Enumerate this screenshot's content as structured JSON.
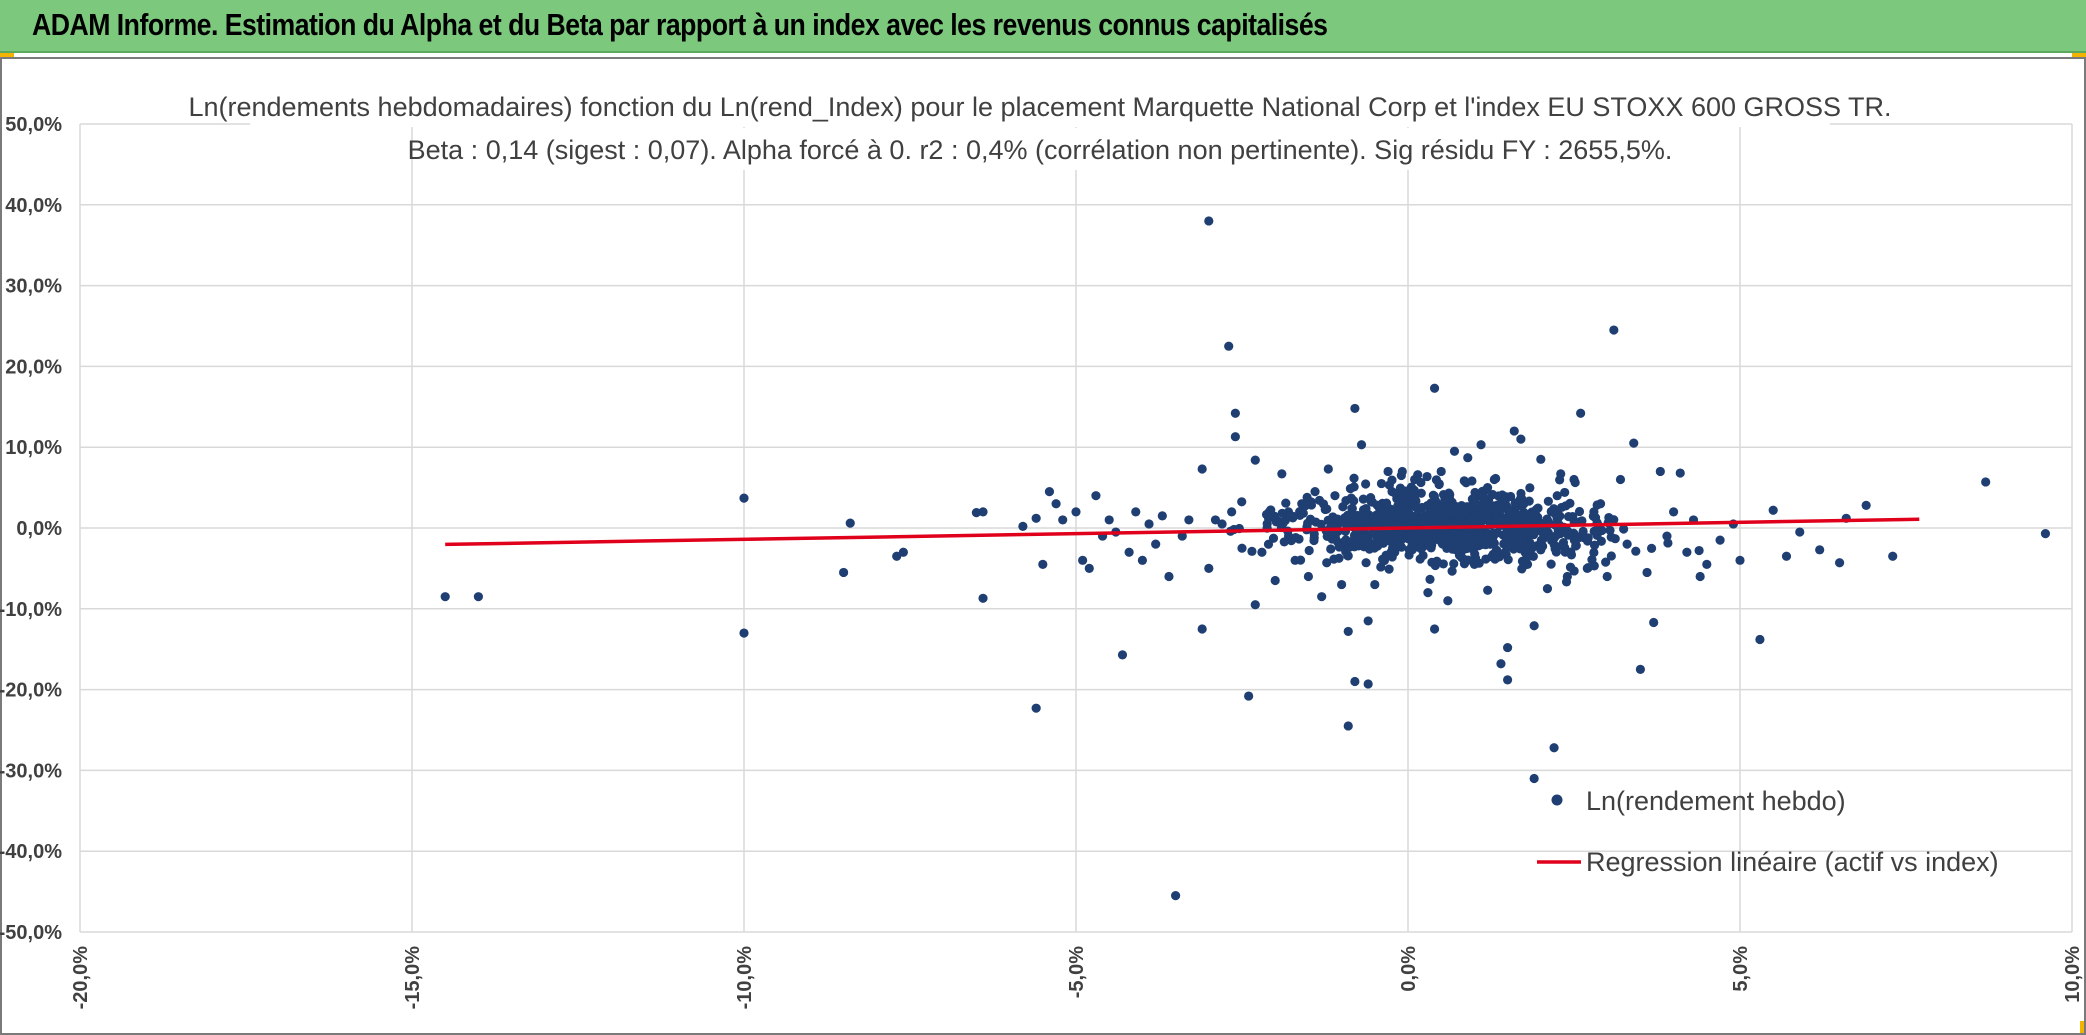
{
  "header": {
    "title": "ADAM Informe. Estimation du Alpha et du Beta par rapport à un index avec les revenus connus capitalisés"
  },
  "colors": {
    "header_bg": "#7cc97e",
    "accent": "#f2b400",
    "points": "#1f3f73",
    "regression": "#e0001b",
    "grid": "#d9d9d9"
  },
  "chart_data": {
    "type": "scatter",
    "title": "Ln(rendements hebdomadaires) fonction du Ln(rend_Index) pour le placement Marquette National Corp et l'index EU STOXX 600 GROSS TR.",
    "subtitle": "Beta : 0,14 (sigest : 0,07). Alpha forcé à 0. r2 : 0,4% (corrélation non pertinente). Sig résidu FY : 2655,5%.",
    "xlabel": "",
    "ylabel": "",
    "xlim": [
      -0.2,
      0.1
    ],
    "ylim": [
      -0.5,
      0.5
    ],
    "x_ticks": [
      -0.2,
      -0.15,
      -0.1,
      -0.05,
      0.0,
      0.05,
      0.1
    ],
    "x_tick_labels": [
      "-20,0%",
      "-15,0%",
      "-10,0%",
      "-5,0%",
      "0,0%",
      "5,0%",
      "10,0%"
    ],
    "y_ticks": [
      0.5,
      0.4,
      0.3,
      0.2,
      0.1,
      0.0,
      -0.1,
      -0.2,
      -0.3,
      -0.4,
      -0.5
    ],
    "y_tick_labels": [
      "50,0%",
      "40,0%",
      "30,0%",
      "20,0%",
      "10,0%",
      "0,0%",
      "-10,0%",
      "-20,0%",
      "-30,0%",
      "-40,0%",
      "-50,0%"
    ],
    "grid": true,
    "legend_position": "bottom-right",
    "series": [
      {
        "name": "Ln(rendement hebdo)",
        "kind": "scatter",
        "color": "#1f3f73",
        "points": [
          [
            -0.145,
            -0.085
          ],
          [
            -0.14,
            -0.085
          ],
          [
            -0.1,
            0.037
          ],
          [
            -0.1,
            -0.13
          ],
          [
            -0.084,
            0.006
          ],
          [
            -0.085,
            -0.055
          ],
          [
            -0.077,
            -0.035
          ],
          [
            -0.076,
            -0.03
          ],
          [
            -0.065,
            0.019
          ],
          [
            -0.064,
            0.02
          ],
          [
            -0.064,
            -0.087
          ],
          [
            -0.058,
            0.002
          ],
          [
            -0.056,
            0.012
          ],
          [
            -0.055,
            -0.045
          ],
          [
            -0.054,
            0.045
          ],
          [
            -0.053,
            0.03
          ],
          [
            -0.052,
            0.01
          ],
          [
            -0.05,
            0.02
          ],
          [
            -0.049,
            -0.04
          ],
          [
            -0.048,
            -0.05
          ],
          [
            -0.047,
            0.04
          ],
          [
            -0.046,
            -0.01
          ],
          [
            -0.056,
            -0.223
          ],
          [
            -0.043,
            -0.157
          ],
          [
            -0.045,
            0.01
          ],
          [
            -0.044,
            -0.005
          ],
          [
            -0.042,
            -0.03
          ],
          [
            -0.041,
            0.02
          ],
          [
            -0.04,
            -0.04
          ],
          [
            -0.039,
            0.005
          ],
          [
            -0.038,
            -0.02
          ],
          [
            -0.037,
            0.015
          ],
          [
            -0.036,
            -0.06
          ],
          [
            -0.035,
            -0.455
          ],
          [
            -0.034,
            -0.01
          ],
          [
            -0.033,
            0.01
          ],
          [
            -0.031,
            -0.125
          ],
          [
            -0.031,
            0.073
          ],
          [
            -0.03,
            0.38
          ],
          [
            -0.03,
            -0.05
          ],
          [
            -0.029,
            0.01
          ],
          [
            -0.028,
            0.005
          ],
          [
            -0.027,
            0.225
          ],
          [
            -0.026,
            0.142
          ],
          [
            -0.026,
            0.113
          ],
          [
            -0.025,
            -0.025
          ],
          [
            -0.024,
            -0.208
          ],
          [
            -0.023,
            -0.095
          ],
          [
            -0.023,
            0.084
          ],
          [
            -0.022,
            -0.03
          ],
          [
            -0.021,
            0.012
          ],
          [
            -0.02,
            -0.065
          ],
          [
            -0.019,
            0.067
          ],
          [
            -0.018,
            0.02
          ],
          [
            -0.017,
            -0.04
          ],
          [
            -0.016,
            0.03
          ],
          [
            -0.015,
            -0.06
          ],
          [
            -0.014,
            0.045
          ],
          [
            -0.013,
            -0.085
          ],
          [
            -0.012,
            0.073
          ],
          [
            -0.011,
            0.04
          ],
          [
            -0.01,
            -0.07
          ],
          [
            -0.009,
            -0.128
          ],
          [
            -0.009,
            -0.245
          ],
          [
            -0.008,
            0.148
          ],
          [
            -0.008,
            -0.19
          ],
          [
            -0.007,
            0.103
          ],
          [
            -0.006,
            -0.193
          ],
          [
            -0.006,
            -0.115
          ],
          [
            -0.005,
            -0.07
          ],
          [
            -0.004,
            0.055
          ],
          [
            -0.003,
            0.07
          ],
          [
            -0.002,
            -0.03
          ],
          [
            -0.001,
            0.065
          ],
          [
            0.0,
            0.03
          ],
          [
            0.001,
            0.06
          ],
          [
            0.002,
            0.043
          ],
          [
            0.003,
            -0.08
          ],
          [
            0.004,
            0.173
          ],
          [
            0.004,
            -0.125
          ],
          [
            0.005,
            0.07
          ],
          [
            0.006,
            -0.09
          ],
          [
            0.007,
            0.095
          ],
          [
            0.008,
            -0.03
          ],
          [
            0.009,
            0.087
          ],
          [
            0.01,
            -0.045
          ],
          [
            0.011,
            0.103
          ],
          [
            0.012,
            -0.077
          ],
          [
            0.013,
            0.06
          ],
          [
            0.014,
            -0.168
          ],
          [
            0.015,
            -0.148
          ],
          [
            0.015,
            -0.188
          ],
          [
            0.016,
            0.12
          ],
          [
            0.017,
            0.11
          ],
          [
            0.018,
            -0.045
          ],
          [
            0.019,
            -0.31
          ],
          [
            0.019,
            -0.121
          ],
          [
            0.02,
            0.085
          ],
          [
            0.021,
            -0.075
          ],
          [
            0.022,
            -0.272
          ],
          [
            0.023,
            0.067
          ],
          [
            0.024,
            -0.06
          ],
          [
            0.025,
            0.06
          ],
          [
            0.026,
            0.142
          ],
          [
            0.027,
            -0.05
          ],
          [
            0.028,
            0.02
          ],
          [
            0.029,
            0.03
          ],
          [
            0.03,
            -0.06
          ],
          [
            0.031,
            0.245
          ],
          [
            0.032,
            0.06
          ],
          [
            0.033,
            -0.02
          ],
          [
            0.034,
            0.105
          ],
          [
            0.035,
            -0.175
          ],
          [
            0.036,
            -0.055
          ],
          [
            0.037,
            -0.117
          ],
          [
            0.038,
            0.07
          ],
          [
            0.039,
            -0.01
          ],
          [
            0.04,
            0.02
          ],
          [
            0.041,
            0.068
          ],
          [
            0.042,
            -0.03
          ],
          [
            0.043,
            0.01
          ],
          [
            0.044,
            -0.06
          ],
          [
            0.045,
            -0.045
          ],
          [
            0.047,
            -0.015
          ],
          [
            0.049,
            0.005
          ],
          [
            0.05,
            -0.04
          ],
          [
            0.053,
            -0.138
          ],
          [
            0.055,
            0.022
          ],
          [
            0.057,
            -0.035
          ],
          [
            0.059,
            -0.005
          ],
          [
            0.062,
            -0.027
          ],
          [
            0.065,
            -0.043
          ],
          [
            0.066,
            0.012
          ],
          [
            0.069,
            0.028
          ],
          [
            0.073,
            -0.035
          ],
          [
            0.087,
            0.057
          ],
          [
            0.096,
            -0.007
          ]
        ]
      },
      {
        "name": "Regression linéaire (actif vs index)",
        "kind": "line",
        "color": "#e0001b",
        "points": [
          [
            -0.145,
            -0.0203
          ],
          [
            0.077,
            0.0108
          ]
        ]
      }
    ]
  }
}
